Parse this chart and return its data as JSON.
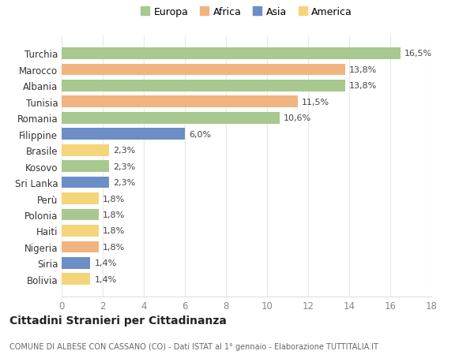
{
  "countries": [
    "Turchia",
    "Marocco",
    "Albania",
    "Tunisia",
    "Romania",
    "Filippine",
    "Brasile",
    "Kosovo",
    "Sri Lanka",
    "Perù",
    "Polonia",
    "Haiti",
    "Nigeria",
    "Siria",
    "Bolivia"
  ],
  "values": [
    16.5,
    13.8,
    13.8,
    11.5,
    10.6,
    6.0,
    2.3,
    2.3,
    2.3,
    1.8,
    1.8,
    1.8,
    1.8,
    1.4,
    1.4
  ],
  "continents": [
    "Europa",
    "Africa",
    "Europa",
    "Africa",
    "Europa",
    "Asia",
    "America",
    "Europa",
    "Asia",
    "America",
    "Europa",
    "America",
    "Africa",
    "Asia",
    "America"
  ],
  "labels": [
    "16,5%",
    "13,8%",
    "13,8%",
    "11,5%",
    "10,6%",
    "6,0%",
    "2,3%",
    "2,3%",
    "2,3%",
    "1,8%",
    "1,8%",
    "1,8%",
    "1,8%",
    "1,4%",
    "1,4%"
  ],
  "colors": {
    "Europa": "#a8c88f",
    "Africa": "#f2b47e",
    "Asia": "#6b8ec7",
    "America": "#f5d57a"
  },
  "legend_order": [
    "Europa",
    "Africa",
    "Asia",
    "America"
  ],
  "title": "Cittadini Stranieri per Cittadinanza",
  "subtitle": "COMUNE DI ALBESE CON CASSANO (CO) - Dati ISTAT al 1° gennaio - Elaborazione TUTTITALIA.IT",
  "xlim": [
    0,
    18
  ],
  "xticks": [
    0,
    2,
    4,
    6,
    8,
    10,
    12,
    14,
    16,
    18
  ],
  "background_color": "#ffffff",
  "grid_color": "#e8e8e8"
}
